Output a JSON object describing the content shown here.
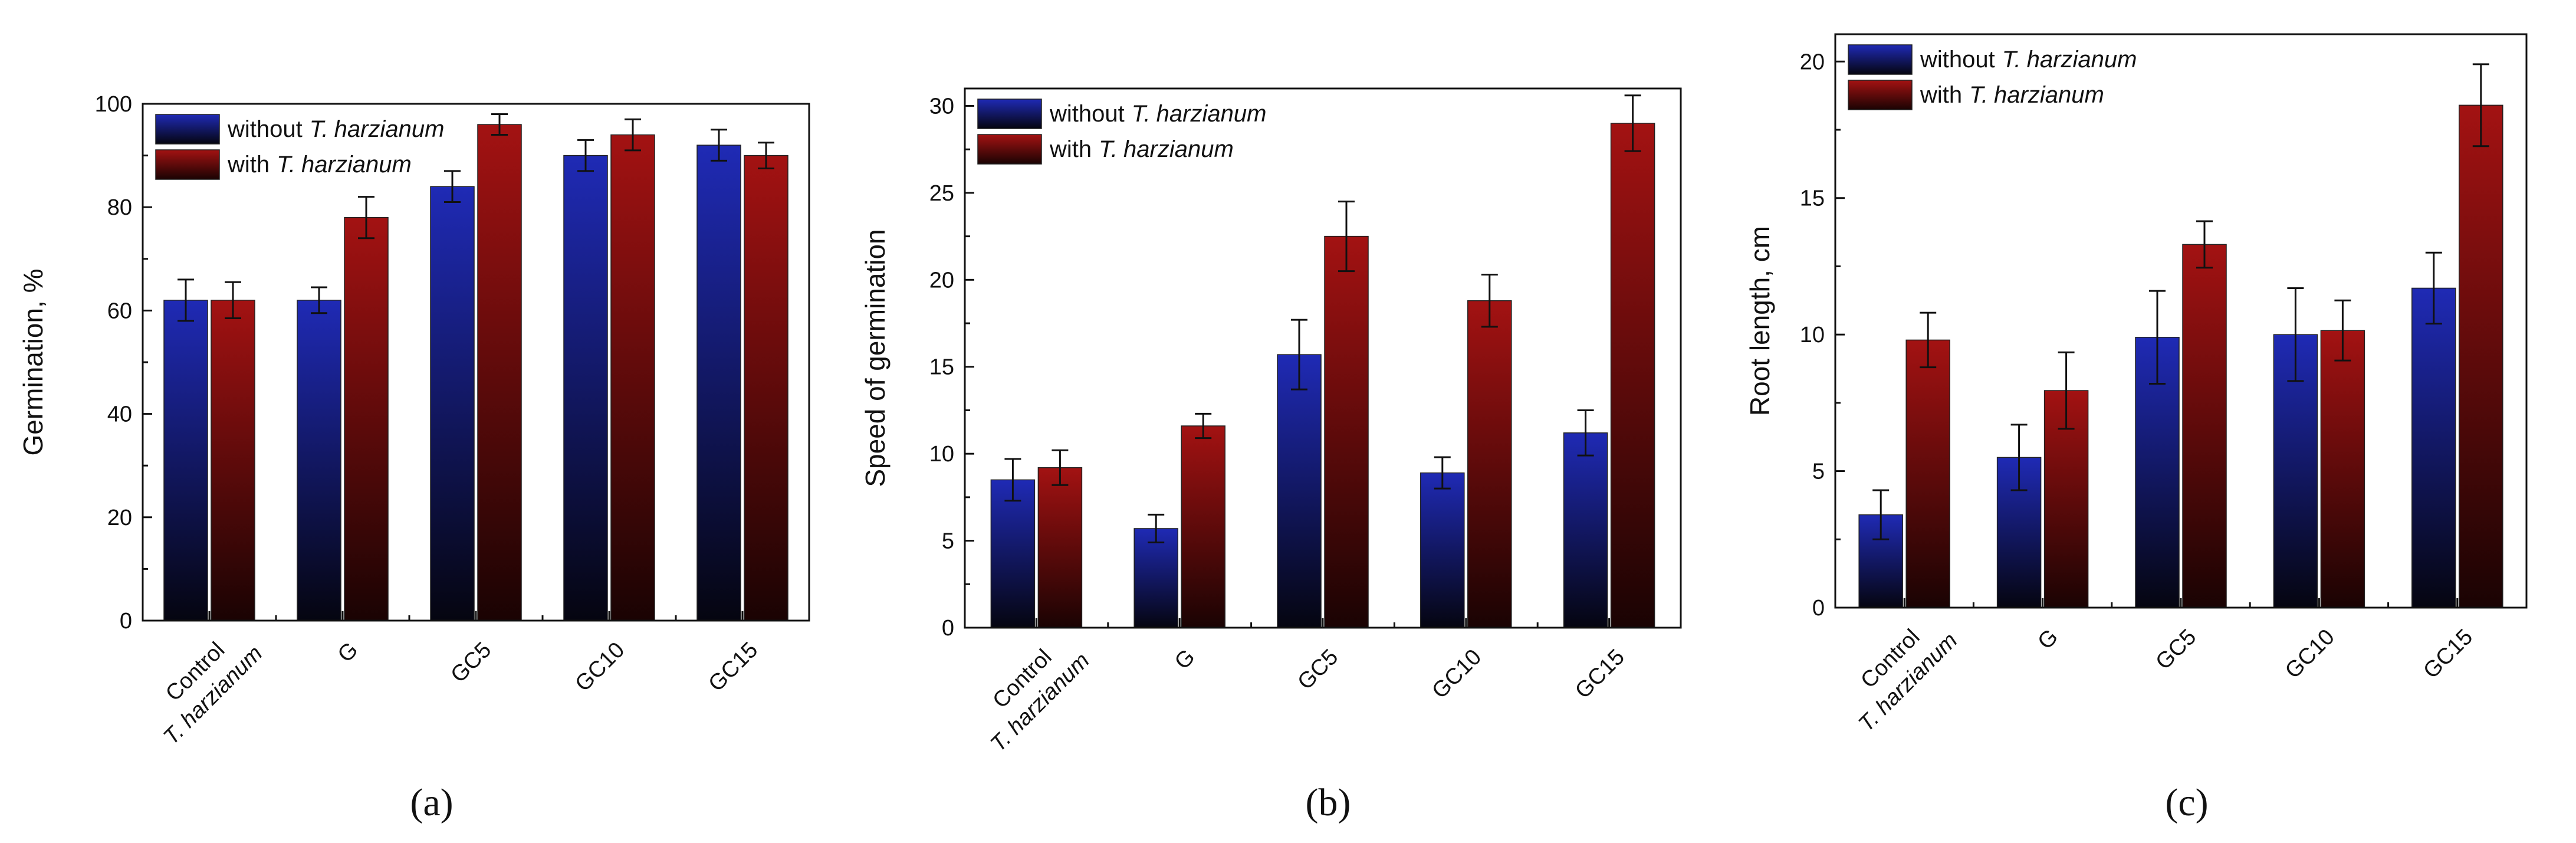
{
  "colors": {
    "without_top": "#1f2ab5",
    "without_bottom": "#050510",
    "with_top": "#a31212",
    "with_bottom": "#1a0303",
    "axis": "#111111"
  },
  "legend_genus": "T.",
  "legend_species": "harzianum",
  "chart_data": [
    {
      "type": "bar",
      "panel_label": "(a)",
      "categories": [
        "Control",
        "G",
        "GC5",
        "GC10",
        "GC15"
      ],
      "category_sublabels": [
        "T. harzianum",
        "",
        "",
        "",
        ""
      ],
      "series": [
        {
          "name": "without T. harzianum",
          "name_prefix": "without",
          "values": [
            62,
            62,
            84,
            90,
            92
          ],
          "errors": [
            4,
            2.5,
            3,
            3,
            3
          ]
        },
        {
          "name": "with T. harzianum",
          "name_prefix": "with",
          "values": [
            62,
            78,
            96,
            94,
            90
          ],
          "errors": [
            3.5,
            4,
            2,
            3,
            2.5
          ]
        }
      ],
      "title": "",
      "xlabel": "",
      "ylabel": "Germination, %",
      "ylim": [
        0,
        100
      ],
      "yticks": [
        0,
        20,
        40,
        60,
        80,
        100
      ],
      "legend_position": "top-left",
      "grid": false
    },
    {
      "type": "bar",
      "panel_label": "(b)",
      "categories": [
        "Control",
        "G",
        "GC5",
        "GC10",
        "GC15"
      ],
      "category_sublabels": [
        "T. harzianum",
        "",
        "",
        "",
        ""
      ],
      "series": [
        {
          "name": "without T. harzianum",
          "name_prefix": "without",
          "values": [
            8.5,
            5.7,
            15.7,
            8.9,
            11.2
          ],
          "errors": [
            1.2,
            0.8,
            2.0,
            0.9,
            1.3
          ]
        },
        {
          "name": "with T. harzianum",
          "name_prefix": "with",
          "values": [
            9.2,
            11.6,
            22.5,
            18.8,
            29.0
          ],
          "errors": [
            1.0,
            0.7,
            2.0,
            1.5,
            1.6
          ]
        }
      ],
      "title": "",
      "xlabel": "",
      "ylabel": "Speed of germination",
      "ylim": [
        0,
        31
      ],
      "yticks": [
        0,
        5,
        10,
        15,
        20,
        25,
        30
      ],
      "legend_position": "top-left",
      "grid": false
    },
    {
      "type": "bar",
      "panel_label": "(c)",
      "categories": [
        "Control",
        "G",
        "GC5",
        "GC10",
        "GC15"
      ],
      "category_sublabels": [
        "T. harzianum",
        "",
        "",
        "",
        ""
      ],
      "series": [
        {
          "name": "without T. harzianum",
          "name_prefix": "without",
          "values": [
            3.4,
            5.5,
            9.9,
            10.0,
            11.7
          ],
          "errors": [
            0.9,
            1.2,
            1.7,
            1.7,
            1.3
          ]
        },
        {
          "name": "with T. harzianum",
          "name_prefix": "with",
          "values": [
            9.8,
            7.95,
            13.3,
            10.15,
            18.4
          ],
          "errors": [
            1.0,
            1.4,
            0.85,
            1.1,
            1.5
          ]
        }
      ],
      "title": "",
      "xlabel": "",
      "ylabel": "Root length, cm",
      "ylim": [
        0,
        21
      ],
      "yticks": [
        0,
        5,
        10,
        15,
        20
      ],
      "legend_position": "top-left",
      "grid": false
    }
  ]
}
